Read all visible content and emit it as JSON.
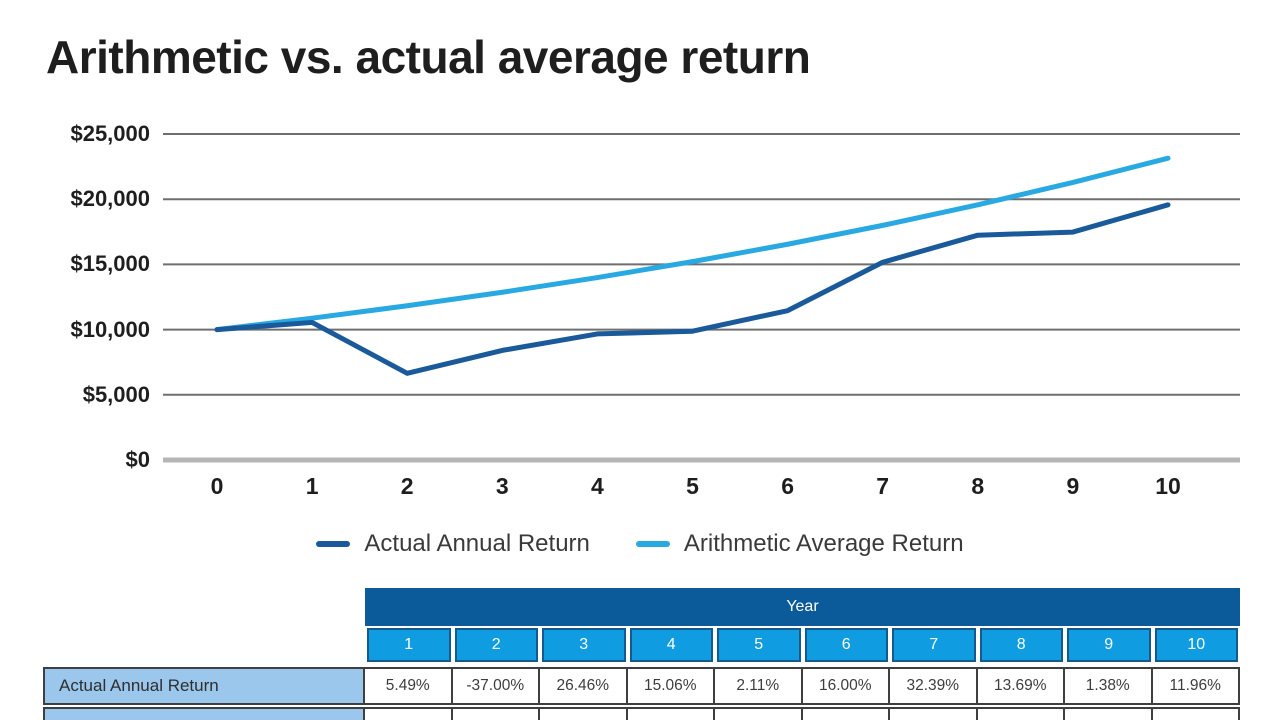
{
  "title": "Arithmetic vs. actual average return",
  "colors": {
    "title_text": "#1e1e1e",
    "axis_text": "#1e1e1e",
    "gridline": "#6f6f6f",
    "zero_line": "#b5b5b5",
    "actual_line": "#1a5a9a",
    "arithmetic_line": "#29a9e1",
    "table_header_bg": "#0b5a99",
    "table_year_bg": "#0f9ce0",
    "table_year_border": "#155a8c",
    "table_label_bg": "#9cc7ec",
    "table_border": "#3f3f3f",
    "table_value_text": "#3d3d3d",
    "legend_text": "#3a3a3a"
  },
  "chart_data": {
    "type": "line",
    "title": "Arithmetic vs. actual average return",
    "xlabel": "",
    "ylabel": "",
    "x": [
      0,
      1,
      2,
      3,
      4,
      5,
      6,
      7,
      8,
      9,
      10
    ],
    "x_tick_labels": [
      "0",
      "1",
      "2",
      "3",
      "4",
      "5",
      "6",
      "7",
      "8",
      "9",
      "10"
    ],
    "y_ticks": [
      {
        "label": "$25,000",
        "value": 25000
      },
      {
        "label": "$20,000",
        "value": 20000
      },
      {
        "label": "$15,000",
        "value": 15000
      },
      {
        "label": "$10,000",
        "value": 10000
      },
      {
        "label": "$5,000",
        "value": 5000
      },
      {
        "label": "$0",
        "value": 0
      }
    ],
    "ylim": [
      0,
      25000
    ],
    "grid": "horizontal",
    "legend_position": "bottom",
    "series": [
      {
        "name": "Actual Annual Return",
        "color": "#1a5a9a",
        "values": [
          10000,
          10549,
          6646,
          8405,
          9670,
          9874,
          11454,
          15164,
          17240,
          17478,
          19569
        ]
      },
      {
        "name": "Arithmetic Average Return",
        "color": "#29a9e1",
        "values": [
          10000,
          10875,
          11827,
          12863,
          13989,
          15213,
          16545,
          17993,
          19568,
          21281,
          23144
        ]
      }
    ]
  },
  "table": {
    "header": "Year",
    "year_columns": [
      "1",
      "2",
      "3",
      "4",
      "5",
      "6",
      "7",
      "8",
      "9",
      "10"
    ],
    "rows": [
      {
        "label": "Actual Annual Return",
        "values": [
          "5.49%",
          "-37.00%",
          "26.46%",
          "15.06%",
          "2.11%",
          "16.00%",
          "32.39%",
          "13.69%",
          "1.38%",
          "11.96%"
        ]
      },
      {
        "label": "",
        "values": [
          "",
          "",
          "",
          "",
          "",
          "",
          "",
          "",
          "",
          ""
        ]
      }
    ]
  }
}
